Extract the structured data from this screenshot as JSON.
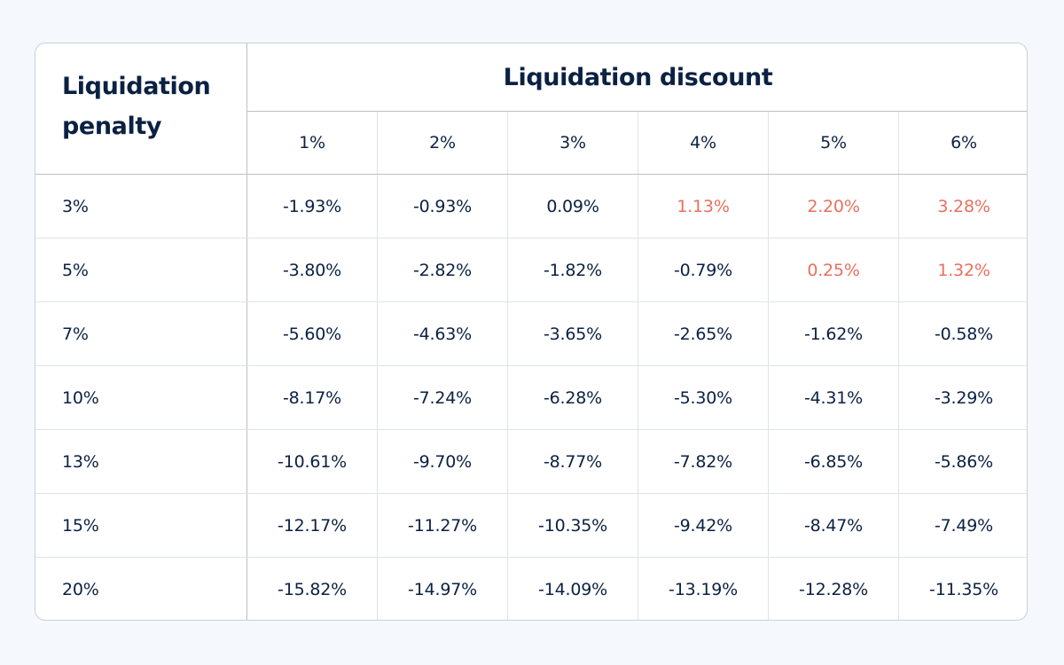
{
  "colors": {
    "positive": "#ea6f5f",
    "text": "#0b2142"
  },
  "chart_data": {
    "type": "table",
    "row_header_title": "Liquidation penalty",
    "column_group_title": "Liquidation discount",
    "columns": [
      "1%",
      "2%",
      "3%",
      "4%",
      "5%",
      "6%"
    ],
    "rows": [
      {
        "label": "3%",
        "values": [
          "-1.93%",
          "-0.93%",
          "0.09%",
          "1.13%",
          "2.20%",
          "3.28%"
        ],
        "highlight": [
          false,
          false,
          false,
          true,
          true,
          true
        ]
      },
      {
        "label": "5%",
        "values": [
          "-3.80%",
          "-2.82%",
          "-1.82%",
          "-0.79%",
          "0.25%",
          "1.32%"
        ],
        "highlight": [
          false,
          false,
          false,
          false,
          true,
          true
        ]
      },
      {
        "label": "7%",
        "values": [
          "-5.60%",
          "-4.63%",
          "-3.65%",
          "-2.65%",
          "-1.62%",
          "-0.58%"
        ],
        "highlight": [
          false,
          false,
          false,
          false,
          false,
          false
        ]
      },
      {
        "label": "10%",
        "values": [
          "-8.17%",
          "-7.24%",
          "-6.28%",
          "-5.30%",
          "-4.31%",
          "-3.29%"
        ],
        "highlight": [
          false,
          false,
          false,
          false,
          false,
          false
        ]
      },
      {
        "label": "13%",
        "values": [
          "-10.61%",
          "-9.70%",
          "-8.77%",
          "-7.82%",
          "-6.85%",
          "-5.86%"
        ],
        "highlight": [
          false,
          false,
          false,
          false,
          false,
          false
        ]
      },
      {
        "label": "15%",
        "values": [
          "-12.17%",
          "-11.27%",
          "-10.35%",
          "-9.42%",
          "-8.47%",
          "-7.49%"
        ],
        "highlight": [
          false,
          false,
          false,
          false,
          false,
          false
        ]
      },
      {
        "label": "20%",
        "values": [
          "-15.82%",
          "-14.97%",
          "-14.09%",
          "-13.19%",
          "-12.28%",
          "-11.35%"
        ],
        "highlight": [
          false,
          false,
          false,
          false,
          false,
          false
        ]
      }
    ]
  }
}
